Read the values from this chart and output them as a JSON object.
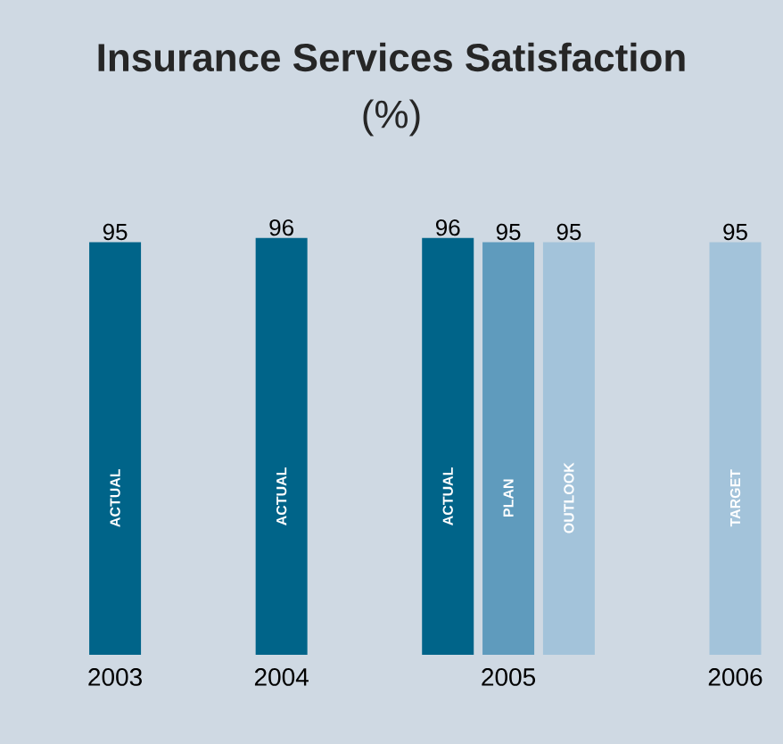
{
  "chart_data": {
    "type": "bar",
    "title": "Insurance Services Satisfaction",
    "subtitle": "(%)",
    "categories": [
      "2003",
      "2004",
      "2005",
      "2006"
    ],
    "data_labels": true,
    "series": [
      {
        "name": "ACTUAL",
        "color": "#006489",
        "values": [
          95,
          96,
          96,
          null
        ]
      },
      {
        "name": "PLAN",
        "color": "#5f9bbd",
        "values": [
          null,
          null,
          95,
          null
        ]
      },
      {
        "name": "OUTLOOK",
        "color": "#a3c3da",
        "values": [
          null,
          null,
          95,
          null
        ]
      },
      {
        "name": "TARGET",
        "color": "#a3c3da",
        "values": [
          null,
          null,
          null,
          95
        ]
      }
    ]
  }
}
